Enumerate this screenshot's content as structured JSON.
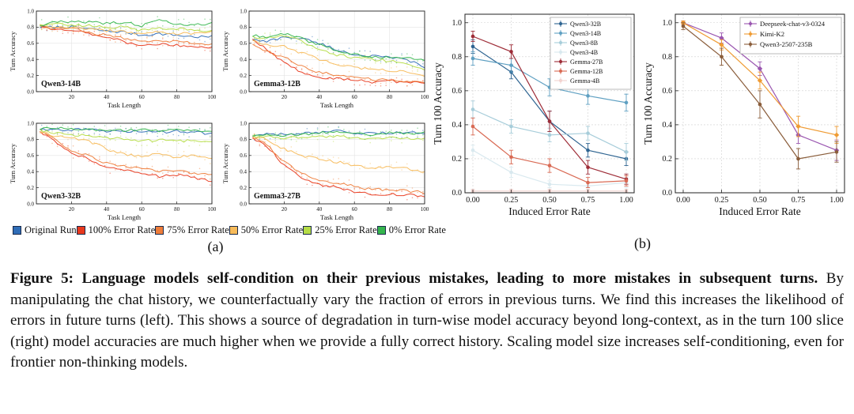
{
  "panel_a": {
    "label": "(a)",
    "xlabel": "Task Length",
    "ylabel": "Turn Accuracy",
    "xticks": [
      [
        20,
        "20"
      ],
      [
        40,
        "40"
      ],
      [
        60,
        "60"
      ],
      [
        80,
        "80"
      ],
      [
        100,
        "100"
      ]
    ],
    "yticks": [
      [
        0,
        "0.0"
      ],
      [
        0.2,
        "0.2"
      ],
      [
        0.4,
        "0.4"
      ],
      [
        0.6,
        "0.6"
      ],
      [
        0.8,
        "0.8"
      ],
      [
        1,
        "1.0"
      ]
    ],
    "legend": [
      {
        "label": "Original Run",
        "color": "#2f6db7"
      },
      {
        "label": "100% Error Rate",
        "color": "#e8391d"
      },
      {
        "label": "75% Error Rate",
        "color": "#ee7d3a"
      },
      {
        "label": "50% Error Rate",
        "color": "#f7bb5a"
      },
      {
        "label": "25% Error Rate",
        "color": "#b5dc46"
      },
      {
        "label": "0% Error Rate",
        "color": "#35b54d"
      }
    ]
  },
  "panel_b": {
    "label": "(b)",
    "xlabel": "Induced Error Rate",
    "ylabel": "Turn 100 Accuracy",
    "xticks": [
      [
        0,
        "0.00"
      ],
      [
        0.25,
        "0.25"
      ],
      [
        0.5,
        "0.50"
      ],
      [
        0.75,
        "0.75"
      ],
      [
        1,
        "1.00"
      ]
    ],
    "yticks": [
      [
        0,
        "0.0"
      ],
      [
        0.2,
        "0.2"
      ],
      [
        0.4,
        "0.4"
      ],
      [
        0.6,
        "0.6"
      ],
      [
        0.8,
        "0.8"
      ],
      [
        1,
        "1.0"
      ]
    ]
  },
  "caption": {
    "bold": "Figure 5: Language models self-condition on their previous mistakes, leading to more mistakes in subsequent turns.",
    "rest": " By manipulating the chat history, we counterfactually vary the fraction of errors in previous turns. We find this increases the likelihood of errors in future turns (left). This shows a source of degradation in turn-wise model accuracy beyond long-context, as in the turn 100 slice (right) model accuracies are much higher when we provide a fully correct history. Scaling model size increases self-conditioning, even for frontier non-thinking models."
  },
  "chart_data": [
    {
      "id": "qwen3-14b",
      "type": "line",
      "title": "Qwen3-14B",
      "xlabel": "Task Length",
      "ylabel": "Turn Accuracy",
      "xlim": [
        0,
        100
      ],
      "ylim": [
        0,
        1
      ],
      "x": [
        0,
        10,
        20,
        30,
        40,
        50,
        60,
        70,
        80,
        90,
        100
      ],
      "series": [
        {
          "name": "Original Run",
          "values": [
            0.8,
            0.8,
            0.8,
            0.78,
            0.75,
            0.74,
            0.7,
            0.72,
            0.7,
            0.68,
            0.68
          ]
        },
        {
          "name": "100% Error Rate",
          "values": [
            0.82,
            0.78,
            0.77,
            0.72,
            0.68,
            0.62,
            0.57,
            0.6,
            0.58,
            0.56,
            0.54
          ]
        },
        {
          "name": "75% Error Rate",
          "values": [
            0.82,
            0.78,
            0.8,
            0.73,
            0.7,
            0.66,
            0.62,
            0.64,
            0.62,
            0.6,
            0.58
          ]
        },
        {
          "name": "50% Error Rate",
          "values": [
            0.82,
            0.8,
            0.8,
            0.77,
            0.76,
            0.74,
            0.71,
            0.74,
            0.72,
            0.73,
            0.74
          ]
        },
        {
          "name": "25% Error Rate",
          "values": [
            0.82,
            0.84,
            0.83,
            0.82,
            0.8,
            0.8,
            0.76,
            0.79,
            0.78,
            0.76,
            0.75
          ]
        },
        {
          "name": "0% Error Rate",
          "values": [
            0.82,
            0.86,
            0.87,
            0.86,
            0.85,
            0.86,
            0.82,
            0.88,
            0.84,
            0.83,
            0.85
          ]
        }
      ]
    },
    {
      "id": "gemma3-12b",
      "type": "line",
      "title": "Gemma3-12B",
      "xlabel": "Task Length",
      "ylabel": "Turn Accuracy",
      "xlim": [
        0,
        100
      ],
      "ylim": [
        0,
        1
      ],
      "x": [
        0,
        10,
        20,
        30,
        40,
        50,
        60,
        70,
        80,
        90,
        100
      ],
      "series": [
        {
          "name": "Original Run",
          "values": [
            0.65,
            0.62,
            0.68,
            0.66,
            0.6,
            0.52,
            0.46,
            0.44,
            0.42,
            0.4,
            0.3
          ]
        },
        {
          "name": "100% Error Rate",
          "values": [
            0.68,
            0.52,
            0.36,
            0.24,
            0.18,
            0.16,
            0.14,
            0.12,
            0.13,
            0.12,
            0.11
          ]
        },
        {
          "name": "75% Error Rate",
          "values": [
            0.63,
            0.5,
            0.42,
            0.32,
            0.24,
            0.2,
            0.18,
            0.15,
            0.15,
            0.13,
            0.12
          ]
        },
        {
          "name": "50% Error Rate",
          "values": [
            0.65,
            0.58,
            0.56,
            0.48,
            0.4,
            0.34,
            0.3,
            0.28,
            0.26,
            0.24,
            0.2
          ]
        },
        {
          "name": "25% Error Rate",
          "values": [
            0.68,
            0.66,
            0.7,
            0.62,
            0.52,
            0.46,
            0.42,
            0.4,
            0.38,
            0.34,
            0.28
          ]
        },
        {
          "name": "0% Error Rate",
          "values": [
            0.7,
            0.68,
            0.72,
            0.66,
            0.58,
            0.5,
            0.46,
            0.44,
            0.42,
            0.42,
            0.4
          ]
        }
      ]
    },
    {
      "id": "qwen3-32b",
      "type": "line",
      "title": "Qwen3-32B",
      "xlabel": "Task Length",
      "ylabel": "Turn Accuracy",
      "xlim": [
        0,
        100
      ],
      "ylim": [
        0,
        1
      ],
      "x": [
        0,
        10,
        20,
        30,
        40,
        50,
        60,
        70,
        80,
        90,
        100
      ],
      "series": [
        {
          "name": "Original Run",
          "values": [
            0.93,
            0.92,
            0.92,
            0.92,
            0.9,
            0.9,
            0.9,
            0.89,
            0.9,
            0.89,
            0.87
          ]
        },
        {
          "name": "100% Error Rate",
          "values": [
            0.92,
            0.78,
            0.64,
            0.55,
            0.45,
            0.42,
            0.38,
            0.34,
            0.36,
            0.33,
            0.27
          ]
        },
        {
          "name": "75% Error Rate",
          "values": [
            0.92,
            0.8,
            0.66,
            0.6,
            0.5,
            0.46,
            0.44,
            0.4,
            0.42,
            0.38,
            0.36
          ]
        },
        {
          "name": "50% Error Rate",
          "values": [
            0.9,
            0.85,
            0.82,
            0.78,
            0.68,
            0.62,
            0.58,
            0.62,
            0.58,
            0.6,
            0.56
          ]
        },
        {
          "name": "25% Error Rate",
          "values": [
            0.92,
            0.88,
            0.86,
            0.84,
            0.82,
            0.8,
            0.78,
            0.79,
            0.78,
            0.78,
            0.77
          ]
        },
        {
          "name": "0% Error Rate",
          "values": [
            0.93,
            0.94,
            0.93,
            0.92,
            0.92,
            0.91,
            0.92,
            0.91,
            0.92,
            0.91,
            0.9
          ]
        }
      ]
    },
    {
      "id": "gemma3-27b",
      "type": "line",
      "title": "Gemma3-27B",
      "xlabel": "Task Length",
      "ylabel": "Turn Accuracy",
      "xlim": [
        0,
        100
      ],
      "ylim": [
        0,
        1
      ],
      "x": [
        0,
        10,
        20,
        30,
        40,
        50,
        60,
        70,
        80,
        90,
        100
      ],
      "series": [
        {
          "name": "Original Run",
          "values": [
            0.84,
            0.86,
            0.86,
            0.87,
            0.88,
            0.9,
            0.88,
            0.87,
            0.88,
            0.88,
            0.88
          ]
        },
        {
          "name": "100% Error Rate",
          "values": [
            0.84,
            0.72,
            0.48,
            0.32,
            0.24,
            0.2,
            0.15,
            0.12,
            0.12,
            0.11,
            0.1
          ]
        },
        {
          "name": "75% Error Rate",
          "values": [
            0.84,
            0.74,
            0.52,
            0.38,
            0.3,
            0.26,
            0.22,
            0.18,
            0.17,
            0.16,
            0.14
          ]
        },
        {
          "name": "50% Error Rate",
          "values": [
            0.84,
            0.8,
            0.68,
            0.6,
            0.55,
            0.52,
            0.48,
            0.44,
            0.46,
            0.44,
            0.38
          ]
        },
        {
          "name": "25% Error Rate",
          "values": [
            0.84,
            0.84,
            0.82,
            0.82,
            0.83,
            0.84,
            0.82,
            0.8,
            0.82,
            0.81,
            0.8
          ]
        },
        {
          "name": "0% Error Rate",
          "values": [
            0.84,
            0.86,
            0.85,
            0.86,
            0.88,
            0.9,
            0.87,
            0.86,
            0.88,
            0.87,
            0.88
          ]
        }
      ]
    },
    {
      "id": "turn100-open-models",
      "type": "line-errorbar",
      "xlabel": "Induced Error Rate",
      "ylabel": "Turn 100 Accuracy",
      "x": [
        0,
        0.25,
        0.5,
        0.75,
        1.0
      ],
      "ylim": [
        0,
        1.05
      ],
      "legend_position": "top-right",
      "series": [
        {
          "name": "Qwen3-32B",
          "color": "#2e6491",
          "marker": "circle",
          "values": [
            0.86,
            0.71,
            0.42,
            0.25,
            0.2
          ],
          "errors": [
            0.04,
            0.04,
            0.06,
            0.04,
            0.04
          ]
        },
        {
          "name": "Qwen3-14B",
          "color": "#5fa0c2",
          "marker": "circle",
          "values": [
            0.79,
            0.75,
            0.62,
            0.57,
            0.53
          ],
          "errors": [
            0.04,
            0.04,
            0.05,
            0.05,
            0.05
          ]
        },
        {
          "name": "Qwen3-8B",
          "color": "#a7cdda",
          "marker": "circle",
          "values": [
            0.49,
            0.39,
            0.34,
            0.35,
            0.24
          ],
          "errors": [
            0.05,
            0.04,
            0.04,
            0.04,
            0.05
          ]
        },
        {
          "name": "Qwen3-4B",
          "color": "#d9e9ef",
          "marker": "circle",
          "values": [
            0.25,
            0.12,
            0.05,
            0.04,
            0.06
          ],
          "errors": [
            0.03,
            0.03,
            0.02,
            0.02,
            0.03
          ]
        },
        {
          "name": "Gemma-27B",
          "color": "#9e2d38",
          "marker": "circle",
          "values": [
            0.92,
            0.83,
            0.42,
            0.15,
            0.08
          ],
          "errors": [
            0.03,
            0.04,
            0.06,
            0.04,
            0.03
          ]
        },
        {
          "name": "Gemma-12B",
          "color": "#d96a54",
          "marker": "circle",
          "values": [
            0.39,
            0.21,
            0.16,
            0.06,
            0.07
          ],
          "errors": [
            0.05,
            0.04,
            0.04,
            0.03,
            0.03
          ]
        },
        {
          "name": "Gemma-4B",
          "color": "#f3d3cf",
          "marker": "circle",
          "values": [
            0.01,
            0.01,
            0.01,
            0.01,
            0.01
          ],
          "errors": [
            0.01,
            0.01,
            0.01,
            0.01,
            0.01
          ]
        }
      ]
    },
    {
      "id": "turn100-frontier-models",
      "type": "line-errorbar",
      "xlabel": "Induced Error Rate",
      "ylabel": "Turn 100 Accuracy",
      "x": [
        0,
        0.25,
        0.5,
        0.75,
        1.0
      ],
      "ylim": [
        0,
        1.05
      ],
      "legend_position": "top-right",
      "series": [
        {
          "name": "Deepseek-chat-v3-0324",
          "color": "#9a56b0",
          "marker": "diamond",
          "values": [
            1.0,
            0.91,
            0.73,
            0.34,
            0.25
          ],
          "errors": [
            0.01,
            0.03,
            0.04,
            0.05,
            0.06
          ]
        },
        {
          "name": "Kimi-K2",
          "color": "#ef9b33",
          "marker": "diamond",
          "values": [
            1.0,
            0.87,
            0.66,
            0.39,
            0.34
          ],
          "errors": [
            0.01,
            0.03,
            0.05,
            0.06,
            0.05
          ]
        },
        {
          "name": "Qwen3-2507-235B",
          "color": "#8a5d3b",
          "marker": "circle",
          "values": [
            0.98,
            0.8,
            0.52,
            0.2,
            0.24
          ],
          "errors": [
            0.02,
            0.05,
            0.08,
            0.06,
            0.06
          ]
        }
      ]
    }
  ]
}
